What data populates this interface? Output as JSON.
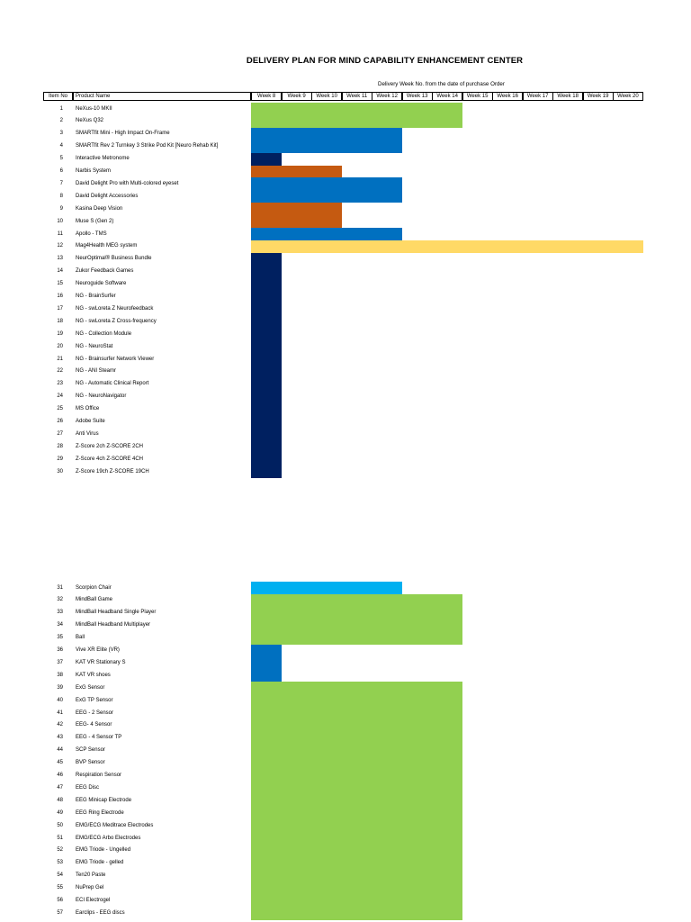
{
  "title": "DELIVERY PLAN FOR MIND CAPABILITY ENHANCEMENT CENTER",
  "subtitle": "Delivery Week No. from the date of purchase Order",
  "headers": {
    "item_no": "Item No",
    "product": "Product Name",
    "weeks": [
      "Week 8",
      "Week 9",
      "Week 10",
      "Week 11",
      "Week 12",
      "Week 13",
      "Week 14",
      "Week 15",
      "Week 16",
      "Week 17",
      "Week 18",
      "Week 19",
      "Week 20"
    ]
  },
  "colors": {
    "green": "#92D050",
    "blue": "#0070C0",
    "navy": "#002060",
    "orange": "#C55A11",
    "yellow": "#FFD966",
    "lightblue": "#00B0F0"
  },
  "items": [
    {
      "no": "1",
      "name": "NeXus-10 MKII",
      "start_week": 8,
      "end_week": 14,
      "color": "green"
    },
    {
      "no": "2",
      "name": "NeXus Q32",
      "start_week": 8,
      "end_week": 14,
      "color": "green"
    },
    {
      "no": "3",
      "name": "SMARTfit Mini - High Impact On-Frame",
      "start_week": 8,
      "end_week": 12,
      "color": "blue"
    },
    {
      "no": "4",
      "name": "SMARTfit Rev 2 Turnkey 3 Strike Pod Kit [Neuro Rehab Kit]",
      "start_week": 8,
      "end_week": 12,
      "color": "blue"
    },
    {
      "no": "5",
      "name": "Interactive Metronome",
      "start_week": 8,
      "end_week": 8,
      "color": "navy"
    },
    {
      "no": "6",
      "name": "Narbis System",
      "start_week": 8,
      "end_week": 10,
      "color": "orange"
    },
    {
      "no": "7",
      "name": "David Delight Pro with Multi-colored eyeset",
      "start_week": 8,
      "end_week": 12,
      "color": "blue"
    },
    {
      "no": "8",
      "name": "David Delight Accessories",
      "start_week": 8,
      "end_week": 12,
      "color": "blue"
    },
    {
      "no": "9",
      "name": "Kasina Deep Vision",
      "start_week": 8,
      "end_week": 10,
      "color": "orange"
    },
    {
      "no": "10",
      "name": "Muse S (Gen 2)",
      "start_week": 8,
      "end_week": 10,
      "color": "orange"
    },
    {
      "no": "11",
      "name": "Apollo - TMS",
      "start_week": 8,
      "end_week": 12,
      "color": "blue"
    },
    {
      "no": "12",
      "name": "Mag4Health MEG system",
      "start_week": 8,
      "end_week": 20,
      "color": "yellow"
    },
    {
      "no": "13",
      "name": "NeurOptimal® Business Bundle",
      "start_week": 8,
      "end_week": 8,
      "color": "navy"
    },
    {
      "no": "14",
      "name": "Zukor Feedback Games",
      "start_week": 8,
      "end_week": 8,
      "color": "navy"
    },
    {
      "no": "15",
      "name": "Neuroguide Software",
      "start_week": 8,
      "end_week": 8,
      "color": "navy"
    },
    {
      "no": "16",
      "name": "NG - BrainSurfer",
      "start_week": 8,
      "end_week": 8,
      "color": "navy"
    },
    {
      "no": "17",
      "name": "NG - swLoreta Z Neurofeedback",
      "start_week": 8,
      "end_week": 8,
      "color": "navy"
    },
    {
      "no": "18",
      "name": "NG - swLoreta Z Cross-frequency",
      "start_week": 8,
      "end_week": 8,
      "color": "navy"
    },
    {
      "no": "19",
      "name": "NG - Collection Module",
      "start_week": 8,
      "end_week": 8,
      "color": "navy"
    },
    {
      "no": "20",
      "name": "NG - NeuroStat",
      "start_week": 8,
      "end_week": 8,
      "color": "navy"
    },
    {
      "no": "21",
      "name": "NG - Brainsurfer Network Viewer",
      "start_week": 8,
      "end_week": 8,
      "color": "navy"
    },
    {
      "no": "22",
      "name": "NG - ANI Steamr",
      "start_week": 8,
      "end_week": 8,
      "color": "navy"
    },
    {
      "no": "23",
      "name": "NG - Automatic Clinical Report",
      "start_week": 8,
      "end_week": 8,
      "color": "navy"
    },
    {
      "no": "24",
      "name": "NG - NeuroNavigator",
      "start_week": 8,
      "end_week": 8,
      "color": "navy"
    },
    {
      "no": "25",
      "name": "MS Office",
      "start_week": 8,
      "end_week": 8,
      "color": "navy"
    },
    {
      "no": "26",
      "name": "Adobe Suite",
      "start_week": 8,
      "end_week": 8,
      "color": "navy"
    },
    {
      "no": "27",
      "name": "Anti Virus",
      "start_week": 8,
      "end_week": 8,
      "color": "navy"
    },
    {
      "no": "28",
      "name": "Z-Score 2ch Z-SCORE 2CH",
      "start_week": 8,
      "end_week": 8,
      "color": "navy"
    },
    {
      "no": "29",
      "name": "Z-Score 4ch Z-SCORE 4CH",
      "start_week": 8,
      "end_week": 8,
      "color": "navy"
    },
    {
      "no": "30",
      "name": "Z-Score 19ch Z-SCORE 19CH",
      "start_week": 8,
      "end_week": 8,
      "color": "navy"
    },
    {
      "no": "31",
      "name": "Scorpion Chair",
      "start_week": 8,
      "end_week": 12,
      "color": "lightblue"
    },
    {
      "no": "32",
      "name": "MindBall Game",
      "start_week": 8,
      "end_week": 14,
      "color": "green"
    },
    {
      "no": "33",
      "name": "MindBall Headband Single Player",
      "start_week": 8,
      "end_week": 14,
      "color": "green"
    },
    {
      "no": "34",
      "name": "MindBall Headband Multiplayer",
      "start_week": 8,
      "end_week": 14,
      "color": "green"
    },
    {
      "no": "35",
      "name": "Ball",
      "start_week": 8,
      "end_week": 14,
      "color": "green"
    },
    {
      "no": "36",
      "name": "Vive XR Elite (VR)",
      "start_week": 8,
      "end_week": 8,
      "color": "blue"
    },
    {
      "no": "37",
      "name": "KAT VR Stationary S",
      "start_week": 8,
      "end_week": 8,
      "color": "blue"
    },
    {
      "no": "38",
      "name": "KAT VR shoes",
      "start_week": 8,
      "end_week": 8,
      "color": "blue"
    },
    {
      "no": "39",
      "name": "ExG Sensor",
      "start_week": 8,
      "end_week": 14,
      "color": "green"
    },
    {
      "no": "40",
      "name": "ExG TP Sensor",
      "start_week": 8,
      "end_week": 14,
      "color": "green"
    },
    {
      "no": "41",
      "name": "EEG - 2 Sensor",
      "start_week": 8,
      "end_week": 14,
      "color": "green"
    },
    {
      "no": "42",
      "name": "EEG- 4 Sensor",
      "start_week": 8,
      "end_week": 14,
      "color": "green"
    },
    {
      "no": "43",
      "name": "EEG - 4 Sensor TP",
      "start_week": 8,
      "end_week": 14,
      "color": "green"
    },
    {
      "no": "44",
      "name": "SCP Sensor",
      "start_week": 8,
      "end_week": 14,
      "color": "green"
    },
    {
      "no": "45",
      "name": "BVP Sensor",
      "start_week": 8,
      "end_week": 14,
      "color": "green"
    },
    {
      "no": "46",
      "name": "Respiration Sensor",
      "start_week": 8,
      "end_week": 14,
      "color": "green"
    },
    {
      "no": "47",
      "name": "EEG Disc",
      "start_week": 8,
      "end_week": 14,
      "color": "green"
    },
    {
      "no": "48",
      "name": "EEG Minicap Electrode",
      "start_week": 8,
      "end_week": 14,
      "color": "green"
    },
    {
      "no": "49",
      "name": "EEG Ring Electrode",
      "start_week": 8,
      "end_week": 14,
      "color": "green"
    },
    {
      "no": "50",
      "name": "EMG/ECG Meditrace Electrodes",
      "start_week": 8,
      "end_week": 14,
      "color": "green"
    },
    {
      "no": "51",
      "name": "EMG/ECG Arbo Electrodes",
      "start_week": 8,
      "end_week": 14,
      "color": "green"
    },
    {
      "no": "52",
      "name": "EMG Triode - Ungelled",
      "start_week": 8,
      "end_week": 14,
      "color": "green"
    },
    {
      "no": "53",
      "name": "EMG Triode - gelled",
      "start_week": 8,
      "end_week": 14,
      "color": "green"
    },
    {
      "no": "54",
      "name": "Ten20 Paste",
      "start_week": 8,
      "end_week": 14,
      "color": "green"
    },
    {
      "no": "55",
      "name": "NuPrep Gel",
      "start_week": 8,
      "end_week": 14,
      "color": "green"
    },
    {
      "no": "56",
      "name": "ECI Electrogel",
      "start_week": 8,
      "end_week": 14,
      "color": "green"
    },
    {
      "no": "57",
      "name": "Earclips - EEG discs",
      "start_week": 8,
      "end_week": 14,
      "color": "green"
    }
  ]
}
